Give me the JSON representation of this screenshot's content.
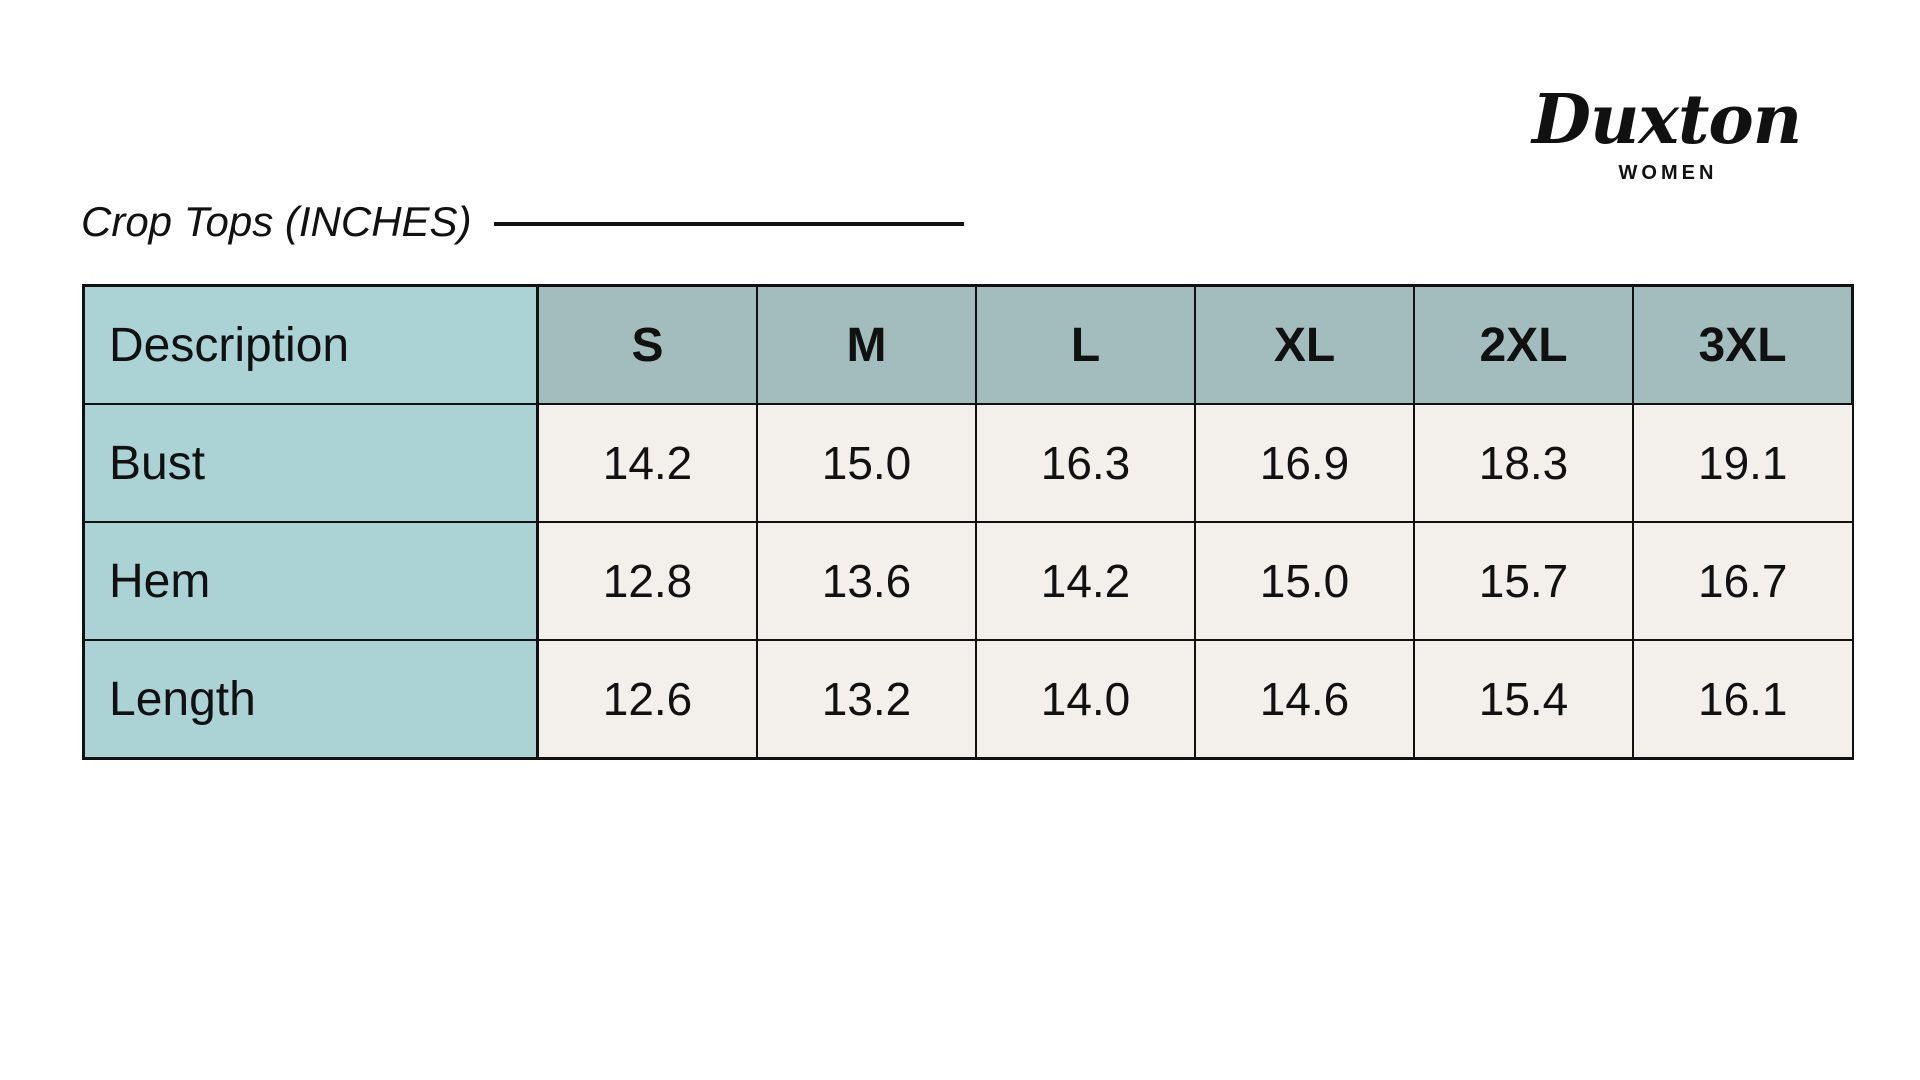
{
  "brand": {
    "name": "Duxton",
    "sub": "WOMEN"
  },
  "heading": {
    "title": "Crop Tops (INCHES)"
  },
  "table": {
    "description_label": "Description",
    "sizes": [
      "S",
      "M",
      "L",
      "XL",
      "2XL",
      "3XL"
    ],
    "rows": [
      {
        "label": "Bust",
        "values": [
          "14.2",
          "15.0",
          "16.3",
          "16.9",
          "18.3",
          "19.1"
        ]
      },
      {
        "label": "Hem",
        "values": [
          "12.8",
          "13.6",
          "14.2",
          "15.0",
          "15.7",
          "16.7"
        ]
      },
      {
        "label": "Length",
        "values": [
          "12.6",
          "13.2",
          "14.0",
          "14.6",
          "15.4",
          "16.1"
        ]
      }
    ]
  },
  "colors": {
    "header_teal": "#a3bdbf",
    "description_teal": "#abd3d6",
    "value_bg": "#f3f0ec",
    "border": "#111111"
  }
}
